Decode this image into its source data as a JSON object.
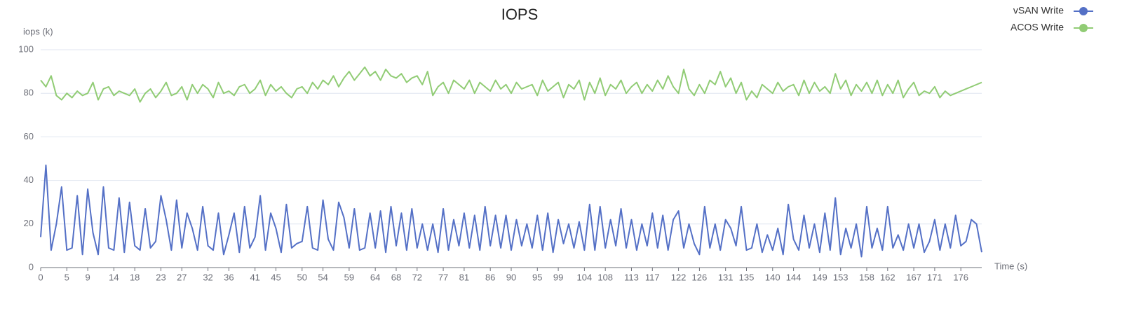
{
  "chart_data": {
    "type": "line",
    "title": "IOPS",
    "y_label": "iops (k)",
    "x_label": "Time (s)",
    "x": [
      0,
      1,
      2,
      3,
      4,
      5,
      6,
      7,
      8,
      9,
      10,
      11,
      12,
      13,
      14,
      15,
      16,
      17,
      18,
      19,
      20,
      21,
      22,
      23,
      24,
      25,
      26,
      27,
      28,
      29,
      30,
      31,
      32,
      33,
      34,
      35,
      36,
      37,
      38,
      39,
      40,
      41,
      42,
      43,
      44,
      45,
      46,
      47,
      48,
      49,
      50,
      51,
      52,
      53,
      54,
      55,
      56,
      57,
      58,
      59,
      60,
      61,
      62,
      63,
      64,
      65,
      66,
      67,
      68,
      69,
      70,
      71,
      72,
      73,
      74,
      75,
      76,
      77,
      78,
      79,
      80,
      81,
      82,
      83,
      84,
      85,
      86,
      87,
      88,
      89,
      90,
      91,
      92,
      93,
      94,
      95,
      96,
      97,
      98,
      99,
      100,
      101,
      102,
      103,
      104,
      105,
      106,
      107,
      108,
      109,
      110,
      111,
      112,
      113,
      114,
      115,
      116,
      117,
      118,
      119,
      120,
      121,
      122,
      123,
      124,
      125,
      126,
      127,
      128,
      129,
      130,
      131,
      132,
      133,
      134,
      135,
      136,
      137,
      138,
      139,
      140,
      141,
      142,
      143,
      144,
      145,
      146,
      147,
      148,
      149,
      150,
      151,
      152,
      153,
      154,
      155,
      156,
      157,
      158,
      159,
      160,
      161,
      162,
      163,
      164,
      165,
      166,
      167,
      168,
      169,
      170,
      171,
      172,
      173,
      174,
      175,
      176,
      177,
      178,
      179,
      180
    ],
    "xlim": [
      0,
      180
    ],
    "xticks": [
      0,
      5,
      9,
      14,
      18,
      23,
      27,
      32,
      36,
      41,
      45,
      50,
      54,
      59,
      64,
      68,
      72,
      77,
      81,
      86,
      90,
      95,
      99,
      104,
      108,
      113,
      117,
      122,
      126,
      131,
      135,
      140,
      144,
      149,
      153,
      158,
      162,
      167,
      171,
      176
    ],
    "ylim": [
      0,
      100
    ],
    "yticks": [
      0,
      20,
      40,
      60,
      80,
      100
    ],
    "grid": true,
    "legend_position": "top-right",
    "series": [
      {
        "name": "vSAN Write",
        "color": "#5470c6",
        "values": [
          14,
          47,
          8,
          20,
          37,
          8,
          9,
          33,
          6,
          36,
          16,
          6,
          37,
          9,
          8,
          32,
          7,
          30,
          10,
          8,
          27,
          9,
          12,
          33,
          22,
          8,
          31,
          9,
          25,
          18,
          8,
          28,
          10,
          8,
          25,
          6,
          15,
          25,
          7,
          28,
          9,
          14,
          33,
          8,
          25,
          18,
          7,
          29,
          9,
          11,
          12,
          28,
          9,
          8,
          31,
          13,
          8,
          30,
          23,
          9,
          27,
          8,
          9,
          25,
          9,
          26,
          7,
          28,
          10,
          25,
          8,
          27,
          9,
          20,
          8,
          20,
          7,
          27,
          8,
          22,
          10,
          25,
          9,
          24,
          8,
          28,
          10,
          24,
          9,
          24,
          8,
          22,
          10,
          20,
          9,
          24,
          8,
          25,
          7,
          22,
          11,
          20,
          9,
          21,
          8,
          29,
          8,
          28,
          9,
          22,
          10,
          27,
          9,
          22,
          8,
          20,
          10,
          25,
          9,
          24,
          8,
          22,
          26,
          9,
          20,
          11,
          6,
          28,
          9,
          20,
          8,
          22,
          18,
          10,
          28,
          8,
          9,
          20,
          7,
          15,
          8,
          18,
          6,
          29,
          13,
          8,
          24,
          9,
          20,
          7,
          25,
          8,
          32,
          6,
          18,
          9,
          20,
          5,
          28,
          9,
          18,
          8,
          28,
          9,
          15,
          8,
          20,
          9,
          20,
          7,
          12,
          22,
          8,
          20,
          9,
          24,
          10,
          12,
          22,
          20,
          7
        ]
      },
      {
        "name": "ACOS Write",
        "color": "#91cc75",
        "values": [
          86,
          83,
          88,
          79,
          77,
          80,
          78,
          81,
          79,
          80,
          85,
          77,
          82,
          83,
          79,
          81,
          80,
          79,
          82,
          76,
          80,
          82,
          78,
          81,
          85,
          79,
          80,
          83,
          77,
          84,
          80,
          84,
          82,
          78,
          85,
          80,
          81,
          79,
          83,
          84,
          80,
          82,
          86,
          79,
          84,
          81,
          83,
          80,
          78,
          82,
          83,
          80,
          85,
          82,
          86,
          84,
          88,
          83,
          87,
          90,
          86,
          89,
          92,
          88,
          90,
          86,
          91,
          88,
          87,
          89,
          85,
          87,
          88,
          84,
          90,
          79,
          83,
          85,
          80,
          86,
          84,
          82,
          86,
          80,
          85,
          83,
          81,
          86,
          82,
          84,
          80,
          85,
          82,
          83,
          84,
          79,
          86,
          81,
          83,
          85,
          78,
          84,
          82,
          86,
          77,
          85,
          80,
          87,
          79,
          84,
          82,
          86,
          80,
          83,
          85,
          80,
          84,
          81,
          86,
          82,
          88,
          83,
          80,
          91,
          82,
          79,
          84,
          80,
          86,
          84,
          90,
          83,
          87,
          80,
          85,
          77,
          81,
          78,
          84,
          82,
          80,
          85,
          81,
          83,
          84,
          79,
          86,
          80,
          85,
          81,
          83,
          80,
          89,
          82,
          86,
          79,
          84,
          81,
          85,
          80,
          86,
          79,
          84,
          80,
          86,
          78,
          82,
          85,
          79,
          81,
          80,
          83,
          78,
          81,
          79,
          80,
          81,
          82,
          83,
          84,
          85
        ]
      }
    ]
  }
}
